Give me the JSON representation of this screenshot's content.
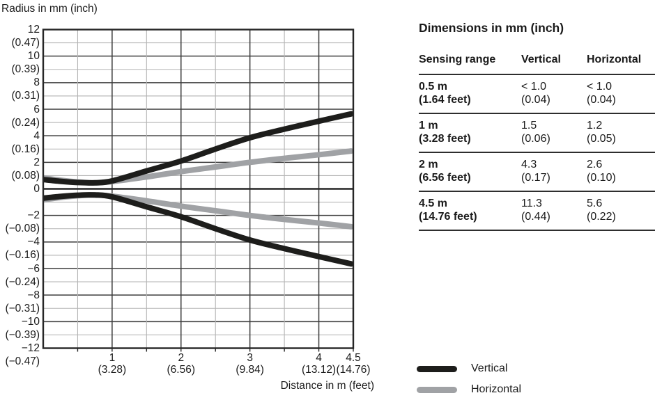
{
  "colors": {
    "vertical_curve": "#1d1d1b",
    "horizontal_curve": "#a0a2a5",
    "grid_major": "#3c3c3c",
    "grid_minor": "#b5b5b5",
    "axis": "#262626",
    "text": "#1a1a1a"
  },
  "chart": {
    "y_axis_title": "Radius in mm (inch)",
    "x_axis_title": "Distance in m (feet)",
    "y_ticks": [
      {
        "v": 12,
        "mm": "12",
        "inch": "(0.47)"
      },
      {
        "v": 10,
        "mm": "10",
        "inch": "(0.39)"
      },
      {
        "v": 8,
        "mm": "8",
        "inch": "(0.31)"
      },
      {
        "v": 6,
        "mm": "6",
        "inch": "(0.24)"
      },
      {
        "v": 4,
        "mm": "4",
        "inch": "(0.16)"
      },
      {
        "v": 2,
        "mm": "2",
        "inch": "(0.08)"
      },
      {
        "v": 0,
        "mm": "0",
        "inch": ""
      },
      {
        "v": -2,
        "mm": "−2",
        "inch": "(−0.08)"
      },
      {
        "v": -4,
        "mm": "−4",
        "inch": "(−0.16)"
      },
      {
        "v": -6,
        "mm": "−6",
        "inch": "(−0.24)"
      },
      {
        "v": -8,
        "mm": "−8",
        "inch": "(−0.31)"
      },
      {
        "v": -10,
        "mm": "−10",
        "inch": "(−0.39)"
      },
      {
        "v": -12,
        "mm": "−12",
        "inch": "(−0.47)"
      }
    ],
    "x_ticks": [
      {
        "v": 1,
        "m": "1",
        "feet": "(3.28)"
      },
      {
        "v": 2,
        "m": "2",
        "feet": "(6.56)"
      },
      {
        "v": 3,
        "m": "3",
        "feet": "(9.84)"
      },
      {
        "v": 4,
        "m": "4",
        "feet": "(13.12)"
      },
      {
        "v": 4.5,
        "m": "4.5",
        "feet": "(14.76)"
      }
    ]
  },
  "chart_data": {
    "type": "line",
    "title": "",
    "xlabel": "Distance in m (feet)",
    "ylabel": "Radius in mm (inch)",
    "xlim": [
      0,
      4.5
    ],
    "ylim": [
      -12,
      12
    ],
    "grid": "on",
    "legend_position": "bottom-right",
    "x": [
      0,
      0.25,
      0.5,
      0.75,
      1,
      1.5,
      2,
      2.5,
      3,
      3.5,
      4,
      4.5
    ],
    "series": [
      {
        "name": "Vertical",
        "color": "#1d1d1b",
        "stroke_width": 8,
        "mirrored_about_zero": true,
        "radius_mm": [
          0.7,
          0.57,
          0.48,
          0.46,
          0.6,
          1.35,
          2.1,
          3.0,
          3.85,
          4.5,
          5.1,
          5.65
        ]
      },
      {
        "name": "Horizontal",
        "color": "#a0a2a5",
        "stroke_width": 8,
        "mirrored_about_zero": true,
        "radius_mm": [
          0.82,
          0.65,
          0.52,
          0.45,
          0.55,
          0.9,
          1.3,
          1.65,
          2.0,
          2.3,
          2.57,
          2.85
        ]
      }
    ]
  },
  "table": {
    "title": "Dimensions in mm (inch)",
    "headers": [
      "Sensing range",
      "Vertical",
      "Horizontal"
    ],
    "rows": [
      {
        "range": "0.5 m",
        "range_feet": "(1.64 feet)",
        "vertical": "< 1.0",
        "vertical_inch": "(0.04)",
        "horizontal": "< 1.0",
        "horizontal_inch": "(0.04)"
      },
      {
        "range": "1 m",
        "range_feet": "(3.28 feet)",
        "vertical": "1.5",
        "vertical_inch": "(0.06)",
        "horizontal": "1.2",
        "horizontal_inch": "(0.05)"
      },
      {
        "range": "2 m",
        "range_feet": "(6.56 feet)",
        "vertical": "4.3",
        "vertical_inch": "(0.17)",
        "horizontal": "2.6",
        "horizontal_inch": "(0.10)"
      },
      {
        "range": "4.5 m",
        "range_feet": "(14.76 feet)",
        "vertical": "11.3",
        "vertical_inch": "(0.44)",
        "horizontal": "5.6",
        "horizontal_inch": "(0.22)"
      }
    ]
  },
  "legend": {
    "items": [
      {
        "label": "Vertical",
        "color": "#1d1d1b"
      },
      {
        "label": "Horizontal",
        "color": "#a0a2a5"
      }
    ]
  }
}
